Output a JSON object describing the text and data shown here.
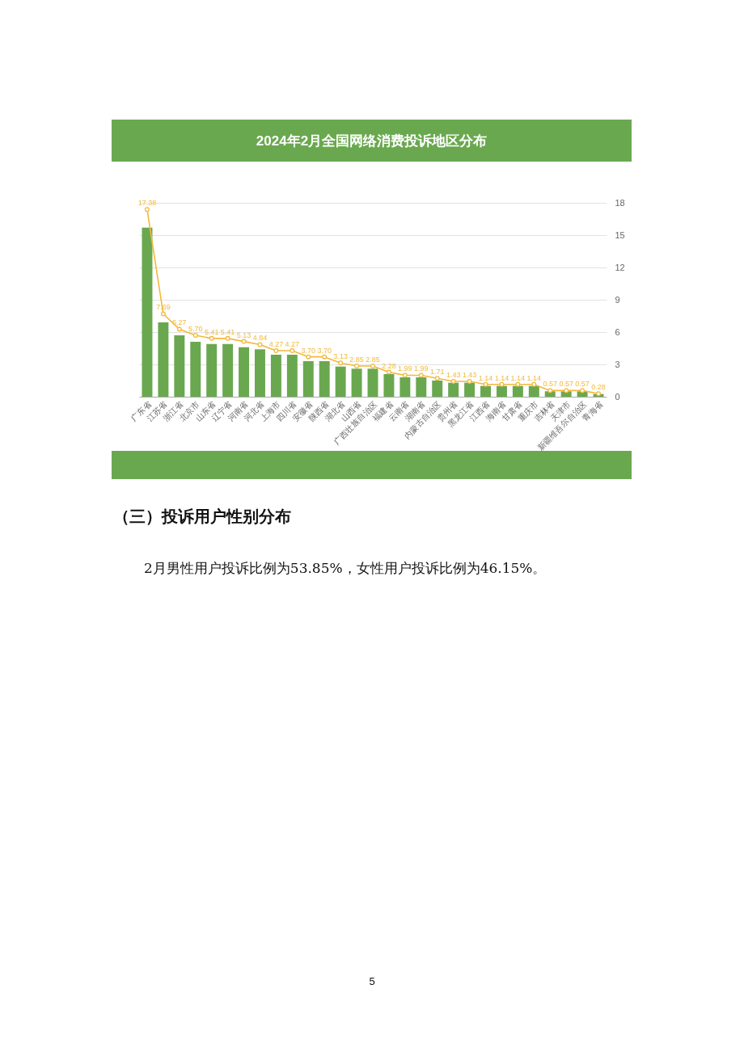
{
  "chart_data": {
    "type": "bar",
    "title": "2024年2月全国网络消费投诉地区分布",
    "categories": [
      "广东省",
      "江苏省",
      "浙江省",
      "北京市",
      "山东省",
      "辽宁省",
      "河南省",
      "河北省",
      "上海市",
      "四川省",
      "安徽省",
      "陕西省",
      "湖北省",
      "山西省",
      "广西壮族自治区",
      "福建省",
      "云南省",
      "湖南省",
      "内蒙古自治区",
      "贵州省",
      "黑龙江省",
      "江西省",
      "海南省",
      "甘肃省",
      "重庆市",
      "吉林省",
      "天津市",
      "新疆维吾尔自治区",
      "青海省"
    ],
    "series": [
      {
        "axis": "y2",
        "color": "#6aa84f",
        "values": [
          15.7,
          6.9,
          5.7,
          5.1,
          4.9,
          4.9,
          4.6,
          4.4,
          3.9,
          3.9,
          3.3,
          3.3,
          2.8,
          2.6,
          2.6,
          2.1,
          1.8,
          1.8,
          1.5,
          1.3,
          1.3,
          1.0,
          1.0,
          1.0,
          1.0,
          0.5,
          0.5,
          0.5,
          0.25
        ]
      },
      {
        "type": "line",
        "axis": "y2",
        "color": "#f2b93b",
        "values": [
          17.38,
          7.69,
          6.27,
          5.7,
          5.41,
          5.41,
          5.13,
          4.84,
          4.27,
          4.27,
          3.7,
          3.7,
          3.13,
          2.85,
          2.85,
          2.28,
          1.99,
          1.99,
          1.71,
          1.43,
          1.43,
          1.14,
          1.14,
          1.14,
          1.14,
          0.57,
          0.57,
          0.57,
          0.28
        ],
        "value_labels": [
          "17.38",
          "7.69",
          "6.27",
          "5.70",
          "5.41",
          "5.41",
          "5.13",
          "4.84",
          "4.27",
          "4.27",
          "3.70",
          "3.70",
          "3.13",
          "2.85",
          "2.85",
          "2.28",
          "1.99",
          "1.99",
          "1.71",
          "1.43",
          "1.43",
          "1.14",
          "1.14",
          "1.14",
          "1.14",
          "0.57",
          "0.57",
          "0.57",
          "0.28"
        ]
      }
    ],
    "y2lim": [
      0,
      18
    ],
    "y2ticks": [
      0,
      3,
      6,
      9,
      12,
      15,
      18
    ],
    "grid": "y",
    "marker": "circle",
    "line_style": "solid",
    "annotations": [
      "（三）投诉用户性别分布",
      "2月男性用户投诉比例为53.85%，女性用户投诉比例为46.15%。",
      "5"
    ]
  }
}
